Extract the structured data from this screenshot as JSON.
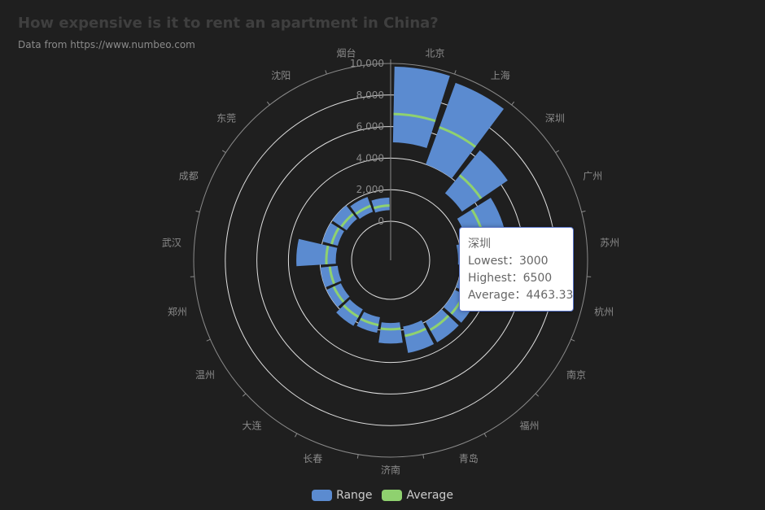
{
  "title": "How expensive is it to rent an apartment in China?",
  "subtitle": "Data from https://www.numbeo.com",
  "colors": {
    "range": "#5b8bd0",
    "average": "#8fd16f",
    "background": "#1f1f1f",
    "axis": "#8a8a8a",
    "grid": "#e0e0e0"
  },
  "chart_data": {
    "type": "polar-bar",
    "title": "How expensive is it to rent an apartment in China?",
    "subtitle": "Data from https://www.numbeo.com",
    "categories": [
      "北京",
      "上海",
      "深圳",
      "广州",
      "苏州",
      "杭州",
      "南京",
      "福州",
      "青岛",
      "济南",
      "长春",
      "大连",
      "温州",
      "郑州",
      "武汉",
      "成都",
      "东莞",
      "沈阳",
      "烟台"
    ],
    "radius_axis": {
      "min": 0,
      "max": 10000,
      "ticks": [
        "0",
        "2,000",
        "4,000",
        "6,000",
        "8,000",
        "10,000"
      ]
    },
    "series": [
      {
        "name": "Range",
        "lowest": [
          5000,
          4000,
          3000,
          2500,
          1800,
          2000,
          2000,
          2000,
          1800,
          1500,
          1200,
          1100,
          1000,
          900,
          1000,
          1000,
          900,
          800,
          700
        ],
        "highest": [
          9800,
          9500,
          6500,
          5000,
          4000,
          3500,
          3500,
          3500,
          3500,
          2800,
          2200,
          2300,
          2000,
          2000,
          3500,
          2000,
          2000,
          1800,
          1500
        ]
      },
      {
        "name": "Average",
        "values": [
          6800,
          6500,
          4463.33,
          3600,
          2600,
          2650,
          2650,
          2600,
          2400,
          1900,
          1700,
          1650,
          1500,
          1400,
          1600,
          1400,
          1300,
          1200,
          1000
        ]
      }
    ],
    "legend": [
      "Range",
      "Average"
    ],
    "legend_position": "bottom-center"
  },
  "tooltip": {
    "category": "深圳",
    "lowest_label": "Lowest：3000",
    "highest_label": "Highest：6500",
    "average_label": "Average：4463.33"
  }
}
